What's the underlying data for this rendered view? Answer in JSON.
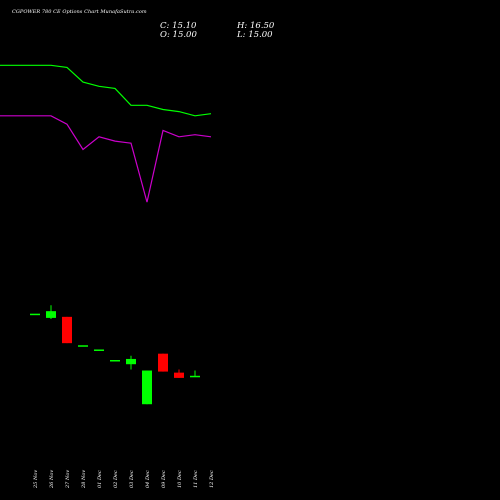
{
  "header": {
    "title": "CGPOWER 780 CE Options Chart MunafaSutra.com",
    "close": "C: 15.10",
    "high": "H: 16.50",
    "open": "O: 15.00",
    "low": "L: 15.00"
  },
  "colors": {
    "background": "#000000",
    "up": "#00ff00",
    "down": "#ff0000",
    "upper_line": "#00ff00",
    "lower_line": "#cc00cc",
    "text": "#ffffff"
  },
  "chart_data": {
    "type": "candlestick",
    "categories": [
      "25 Nov",
      "26 Nov",
      "27 Nov",
      "28 Nov",
      "01 Dec",
      "02 Dec",
      "03 Dec",
      "04 Dec",
      "09 Dec",
      "10 Dec",
      "11 Dec",
      "12 Dec"
    ],
    "candles": [
      {
        "date": "25 Nov",
        "open": 30.0,
        "high": 30.0,
        "low": 30.0,
        "close": 30.0
      },
      {
        "date": "26 Nov",
        "open": 28.0,
        "high": 34.0,
        "low": 27.5,
        "close": 31.2
      },
      {
        "date": "27 Nov",
        "open": 28.5,
        "high": 28.5,
        "low": 16.0,
        "close": 16.0
      },
      {
        "date": "28 Nov",
        "open": 15.0,
        "high": 15.0,
        "low": 15.0,
        "close": 15.0
      },
      {
        "date": "01 Dec",
        "open": 13.0,
        "high": 13.0,
        "low": 13.0,
        "close": 13.0
      },
      {
        "date": "02 Dec",
        "open": 8.0,
        "high": 8.0,
        "low": 8.0,
        "close": 8.0
      },
      {
        "date": "03 Dec",
        "open": 6.0,
        "high": 10.0,
        "low": 3.5,
        "close": 8.5
      },
      {
        "date": "04 Dec",
        "open": -13.0,
        "high": 3.0,
        "low": -13.0,
        "close": 3.0
      },
      {
        "date": "09 Dec",
        "open": 11.0,
        "high": 11.0,
        "low": 2.5,
        "close": 2.5
      },
      {
        "date": "10 Dec",
        "open": 2.0,
        "high": 3.5,
        "low": -0.5,
        "close": -0.5
      },
      {
        "date": "11 Dec",
        "open": 0.0,
        "high": 3.0,
        "low": 0.0,
        "close": 0.5
      },
      {
        "date": "12 Dec",
        "open": null,
        "high": null,
        "low": null,
        "close": null
      }
    ],
    "upper_line": [
      148,
      148,
      147,
      140,
      138,
      137,
      129,
      129,
      127,
      126,
      124,
      125
    ],
    "lower_line": [
      124,
      124,
      120,
      108,
      114,
      112,
      111,
      83,
      117,
      114,
      115,
      114
    ],
    "ylim": [
      -30,
      160
    ],
    "xlabel": "",
    "ylabel": "",
    "grid": false
  }
}
